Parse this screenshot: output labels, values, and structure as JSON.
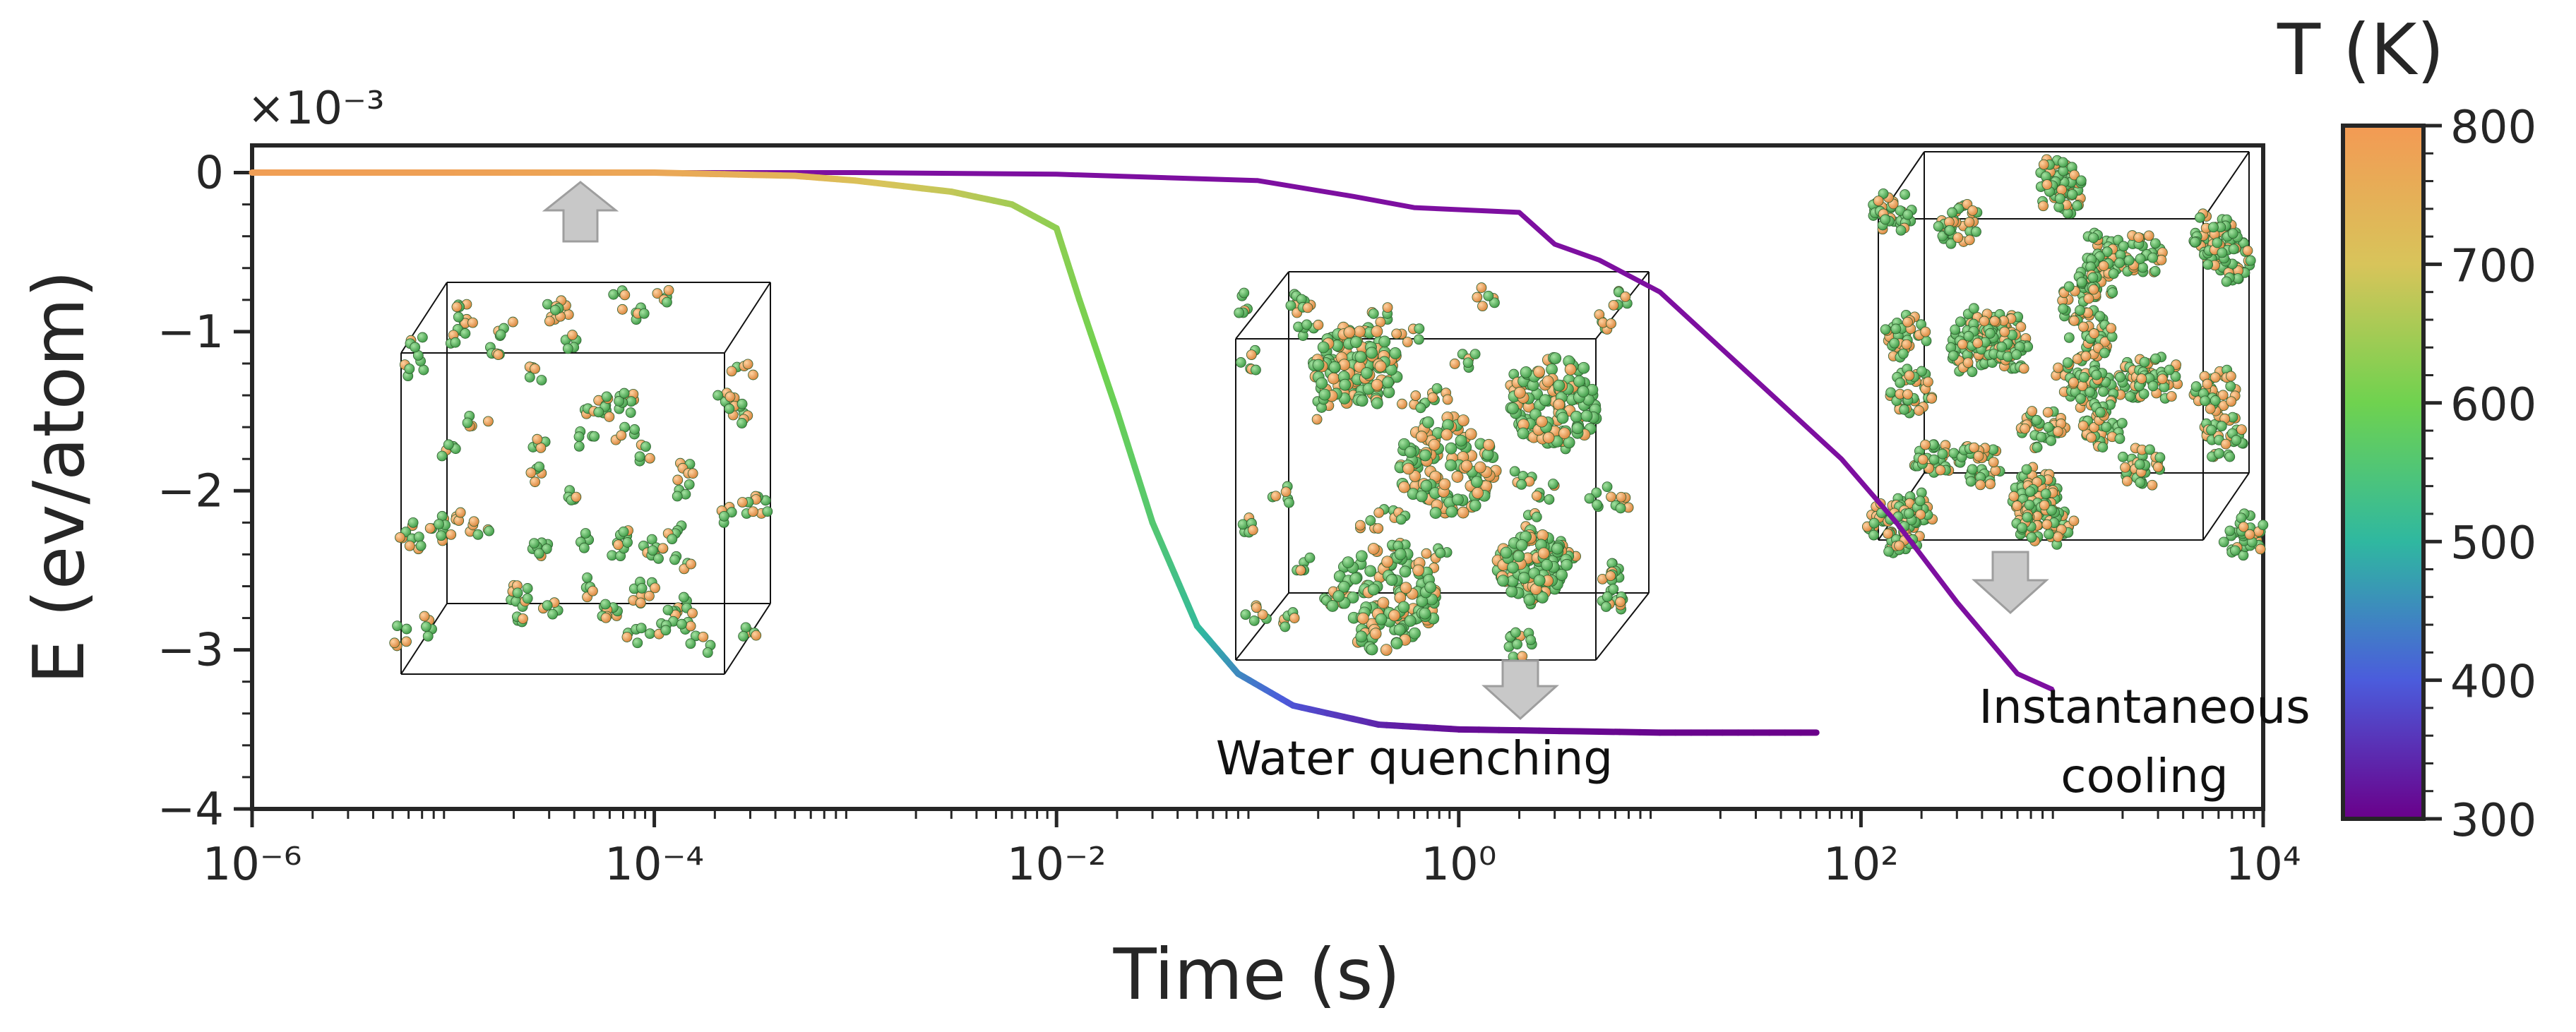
{
  "chart_data": {
    "type": "line",
    "xlabel": "Time (s)",
    "ylabel": "E (ev/atom)",
    "xscale": "log",
    "xlim": [
      1e-06,
      10000.0
    ],
    "ylim": [
      -4,
      0.1
    ],
    "y_scale_factor": "×10⁻³",
    "x_ticks": [
      "10⁻⁶",
      "10⁻⁴",
      "10⁻²",
      "10⁰",
      "10²",
      "10⁴"
    ],
    "y_ticks": [
      "0",
      "−1",
      "−2",
      "−3",
      "−4"
    ],
    "grid": false,
    "colorbar": {
      "label": "T (K)",
      "ticks": [
        "800",
        "700",
        "600",
        "500",
        "400",
        "300"
      ],
      "range": [
        300,
        800
      ],
      "colormap": "plasma-rainbow (purple → blue → green → orange)"
    },
    "series": [
      {
        "name": "Water quenching",
        "color_by": "temperature",
        "points": [
          {
            "x": 1e-06,
            "y": 0.0,
            "T": 790
          },
          {
            "x": 1e-05,
            "y": 0.0,
            "T": 785
          },
          {
            "x": 0.0001,
            "y": 0.0,
            "T": 770
          },
          {
            "x": 0.0005,
            "y": -0.02,
            "T": 740
          },
          {
            "x": 0.001,
            "y": -0.05,
            "T": 710
          },
          {
            "x": 0.003,
            "y": -0.12,
            "T": 680
          },
          {
            "x": 0.006,
            "y": -0.2,
            "T": 650
          },
          {
            "x": 0.01,
            "y": -0.35,
            "T": 630
          },
          {
            "x": 0.013,
            "y": -0.8,
            "T": 615
          },
          {
            "x": 0.02,
            "y": -1.5,
            "T": 590
          },
          {
            "x": 0.03,
            "y": -2.2,
            "T": 560
          },
          {
            "x": 0.05,
            "y": -2.85,
            "T": 510
          },
          {
            "x": 0.08,
            "y": -3.15,
            "T": 450
          },
          {
            "x": 0.15,
            "y": -3.35,
            "T": 390
          },
          {
            "x": 0.4,
            "y": -3.47,
            "T": 340
          },
          {
            "x": 1,
            "y": -3.5,
            "T": 315
          },
          {
            "x": 10,
            "y": -3.52,
            "T": 305
          },
          {
            "x": 60,
            "y": -3.52,
            "T": 300
          }
        ]
      },
      {
        "name": "Instantaneous cooling",
        "color": "#7d0fa0",
        "points": [
          {
            "x": 1e-06,
            "y": 0.0
          },
          {
            "x": 0.001,
            "y": 0.0
          },
          {
            "x": 0.01,
            "y": -0.01
          },
          {
            "x": 0.1,
            "y": -0.05
          },
          {
            "x": 0.3,
            "y": -0.15
          },
          {
            "x": 0.6,
            "y": -0.22
          },
          {
            "x": 2,
            "y": -0.25
          },
          {
            "x": 3,
            "y": -0.45
          },
          {
            "x": 5,
            "y": -0.55
          },
          {
            "x": 10,
            "y": -0.75
          },
          {
            "x": 20,
            "y": -1.1
          },
          {
            "x": 40,
            "y": -1.45
          },
          {
            "x": 80,
            "y": -1.8
          },
          {
            "x": 150,
            "y": -2.2
          },
          {
            "x": 300,
            "y": -2.7
          },
          {
            "x": 600,
            "y": -3.15
          },
          {
            "x": 900,
            "y": -3.25
          }
        ]
      }
    ],
    "annotations": [
      {
        "text": "Water quenching",
        "x": 1.2,
        "y": -3.65
      },
      {
        "text": "Instantaneous",
        "x": 800,
        "y": -3.35
      },
      {
        "text": "cooling",
        "x": 800,
        "y": -3.77
      }
    ]
  },
  "colors": {
    "axis": "#262626",
    "arrow": "#c8c8c8",
    "atom_green": "#5cb85c",
    "atom_orange": "#f0a35a"
  }
}
